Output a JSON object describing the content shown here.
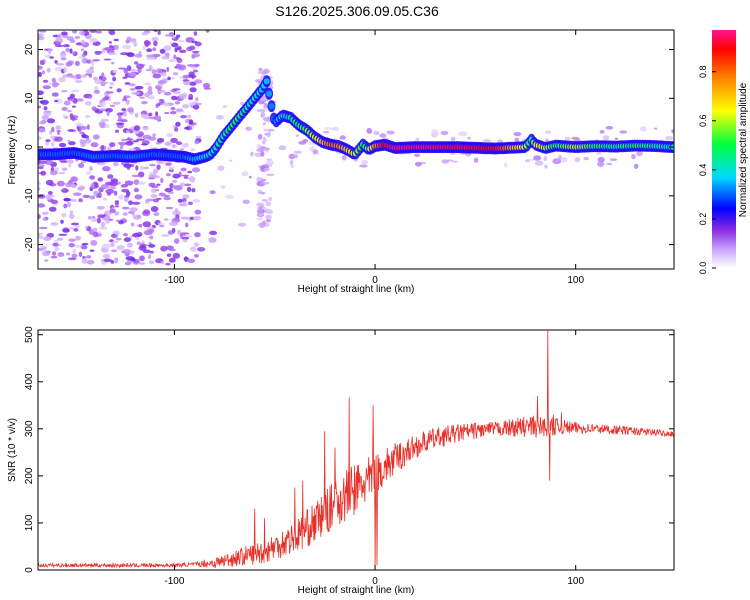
{
  "title": "S126.2025.306.09.05.C36",
  "colors": {
    "snr_line": "#e8302a",
    "ridge_low": "#4020ff",
    "ridge_high": "#e01010",
    "scatter": "#b48cff"
  },
  "chart_data": [
    {
      "type": "heatmap",
      "name": "spectrogram",
      "xlabel": "Height of straight line (km)",
      "ylabel": "Frequency (Hz)",
      "xlim": [
        -168,
        149
      ],
      "ylim": [
        -25,
        24
      ],
      "xticks": [
        -100,
        0,
        100
      ],
      "yticks": [
        20,
        10,
        0,
        -10,
        -20
      ],
      "colorbar": {
        "label": "Normalized spectral amplitude",
        "range": [
          0,
          0.97
        ],
        "ticks": [
          0.0,
          0.2,
          0.4,
          0.6,
          0.8
        ],
        "colors": [
          "#ffffff",
          "#c8a0ff",
          "#8a2be2",
          "#0000ff",
          "#00d8ff",
          "#00ff40",
          "#ffff00",
          "#ff8000",
          "#ff0000",
          "#ff1493"
        ]
      },
      "ridge": {
        "x": [
          -160,
          -150,
          -140,
          -130,
          -120,
          -110,
          -100,
          -95,
          -90,
          -85,
          -82,
          -79,
          -76,
          -73,
          -70,
          -67,
          -64,
          -61,
          -58,
          -56,
          -54,
          -50,
          -46,
          -42,
          -38,
          -34,
          -30,
          -26,
          -22,
          -18,
          -14,
          -10,
          -6,
          -3,
          0,
          5,
          10,
          20,
          40,
          60,
          75,
          78,
          80,
          85,
          90,
          100,
          110,
          120,
          130,
          140,
          148
        ],
        "f": [
          -1.5,
          -1.2,
          -2.0,
          -1.8,
          -2.0,
          -1.5,
          -1.8,
          -2.0,
          -2.5,
          -2.0,
          -1.5,
          0.0,
          2.0,
          3.5,
          5.0,
          6.5,
          8.0,
          9.5,
          11.0,
          12.0,
          13.5,
          5.0,
          6.5,
          6.0,
          4.5,
          3.5,
          2.0,
          1.0,
          0.5,
          0.2,
          -0.5,
          -1.5,
          0.5,
          -0.5,
          0.2,
          0.5,
          -0.2,
          0.0,
          0.0,
          -0.3,
          0.0,
          1.5,
          0.5,
          -0.2,
          0.3,
          0.0,
          0.2,
          0.1,
          0.3,
          0.2,
          0.0
        ],
        "amp": [
          0.3,
          0.3,
          0.32,
          0.3,
          0.32,
          0.3,
          0.3,
          0.3,
          0.35,
          0.38,
          0.4,
          0.42,
          0.45,
          0.5,
          0.5,
          0.48,
          0.45,
          0.42,
          0.4,
          0.38,
          0.35,
          0.3,
          0.4,
          0.45,
          0.5,
          0.55,
          0.6,
          0.7,
          0.8,
          0.78,
          0.7,
          0.6,
          0.5,
          0.55,
          0.75,
          0.9,
          0.95,
          0.95,
          0.92,
          0.9,
          0.6,
          0.45,
          0.65,
          0.6,
          0.5,
          0.6,
          0.5,
          0.45,
          0.5,
          0.45,
          0.4
        ]
      }
    },
    {
      "type": "line",
      "name": "snr",
      "xlabel": "Height of straight line (km)",
      "ylabel": "SNR (10 * v/v)",
      "xlim": [
        -168,
        149
      ],
      "ylim": [
        0,
        510
      ],
      "xticks": [
        -100,
        0,
        100
      ],
      "yticks": [
        0,
        100,
        200,
        300,
        400,
        500
      ],
      "trend": {
        "x": [
          -168,
          -140,
          -120,
          -100,
          -90,
          -80,
          -75,
          -70,
          -65,
          -60,
          -55,
          -50,
          -45,
          -40,
          -35,
          -30,
          -25,
          -20,
          -15,
          -10,
          -5,
          0,
          5,
          10,
          15,
          20,
          25,
          30,
          40,
          50,
          60,
          70,
          80,
          90,
          100,
          110,
          120,
          130,
          140,
          149
        ],
        "y": [
          10,
          10,
          10,
          10,
          12,
          15,
          20,
          25,
          30,
          35,
          40,
          50,
          60,
          70,
          85,
          100,
          120,
          140,
          155,
          170,
          185,
          200,
          220,
          235,
          250,
          262,
          272,
          280,
          290,
          296,
          300,
          303,
          305,
          305,
          302,
          300,
          298,
          295,
          292,
          290
        ]
      },
      "noise_amplitude": {
        "x": [
          -168,
          -90,
          -80,
          -40,
          -10,
          0,
          20,
          60,
          80,
          100,
          149
        ],
        "a": [
          4,
          4,
          12,
          35,
          60,
          45,
          25,
          15,
          25,
          12,
          6
        ]
      },
      "spikes": [
        {
          "x": -60,
          "y": 130
        },
        {
          "x": -55,
          "y": 110
        },
        {
          "x": -40,
          "y": 175
        },
        {
          "x": -36,
          "y": 190
        },
        {
          "x": -25,
          "y": 295
        },
        {
          "x": -20,
          "y": 260
        },
        {
          "x": -13,
          "y": 367
        },
        {
          "x": -1,
          "y": 350
        },
        {
          "x": 0,
          "y": 2
        },
        {
          "x": 1,
          "y": 10
        },
        {
          "x": 81,
          "y": 370
        },
        {
          "x": 86,
          "y": 508
        },
        {
          "x": 87,
          "y": 190
        },
        {
          "x": 89,
          "y": 330
        },
        {
          "x": 93,
          "y": 335
        }
      ]
    }
  ]
}
